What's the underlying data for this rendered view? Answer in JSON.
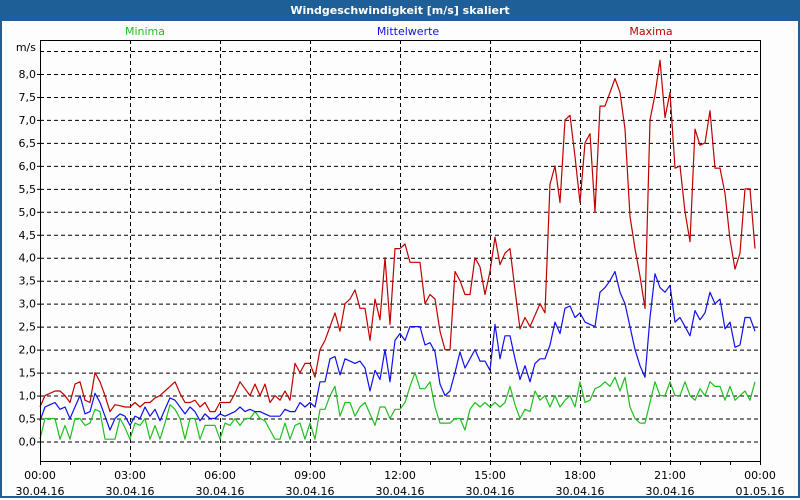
{
  "window": {
    "title": "Windgeschwindigkeit [m/s] skaliert"
  },
  "colors": {
    "titlebar": "#1e5f97",
    "min": "#1fbf1f",
    "mean": "#1010ee",
    "max": "#c00000"
  },
  "chart_data": {
    "type": "line",
    "title": "Windgeschwindigkeit [m/s] skaliert",
    "ylabel": "m/s",
    "xlabel": "",
    "ylim": [
      -0.4,
      8.7
    ],
    "yticks": [
      "0,0",
      "0,5",
      "1,0",
      "1,5",
      "2,0",
      "2,5",
      "3,0",
      "3,5",
      "4,0",
      "4,5",
      "5,0",
      "5,5",
      "6,0",
      "6,5",
      "7,0",
      "7,5",
      "8,0"
    ],
    "ytick_values": [
      0,
      0.5,
      1,
      1.5,
      2,
      2.5,
      3,
      3.5,
      4,
      4.5,
      5,
      5.5,
      6,
      6.5,
      7,
      7.5,
      8
    ],
    "xlim_hours": [
      0,
      24
    ],
    "xticks": [
      {
        "hour": 0,
        "time": "00:00",
        "date": "30.04.16"
      },
      {
        "hour": 3,
        "time": "03:00",
        "date": "30.04.16"
      },
      {
        "hour": 6,
        "time": "06:00",
        "date": "30.04.16"
      },
      {
        "hour": 9,
        "time": "09:00",
        "date": "30.04.16"
      },
      {
        "hour": 12,
        "time": "12:00",
        "date": "30.04.16"
      },
      {
        "hour": 15,
        "time": "15:00",
        "date": "30.04.16"
      },
      {
        "hour": 18,
        "time": "18:00",
        "date": "30.04.16"
      },
      {
        "hour": 21,
        "time": "21:00",
        "date": "30.04.16"
      },
      {
        "hour": 24,
        "time": "00:00",
        "date": "01.05.16"
      }
    ],
    "grid": true,
    "legend_placement": "top",
    "x_start_hour": 0,
    "interval_minutes": 10,
    "series": [
      {
        "name": "Minima",
        "color": "#1fbf1f",
        "values": [
          0.05,
          0.5,
          0.5,
          0.5,
          0.05,
          0.35,
          0.05,
          0.5,
          0.5,
          0.35,
          0.4,
          0.7,
          0.65,
          0.05,
          0.05,
          0.05,
          0.5,
          0.3,
          0.05,
          0.4,
          0.35,
          0.5,
          0.05,
          0.35,
          0.05,
          0.4,
          0.8,
          0.7,
          0.5,
          0.05,
          0.5,
          0.5,
          0.05,
          0.35,
          0.35,
          0.35,
          0.05,
          0.4,
          0.35,
          0.5,
          0.35,
          0.5,
          0.5,
          0.65,
          0.5,
          0.45,
          0.25,
          0.05,
          0.05,
          0.4,
          0.05,
          0.35,
          0.4,
          0.05,
          0.4,
          0.05,
          0.7,
          0.7,
          1.0,
          1.2,
          0.55,
          0.85,
          0.85,
          0.55,
          0.75,
          0.85,
          0.6,
          0.35,
          0.75,
          0.75,
          0.5,
          0.7,
          0.7,
          0.85,
          1.2,
          1.5,
          1.15,
          1.15,
          1.3,
          0.75,
          0.4,
          0.4,
          0.4,
          0.5,
          0.5,
          0.25,
          0.7,
          0.85,
          0.75,
          0.85,
          0.75,
          0.85,
          0.75,
          0.85,
          1.2,
          0.8,
          0.5,
          0.7,
          0.65,
          1.1,
          0.9,
          1.0,
          0.75,
          1.0,
          0.75,
          0.9,
          1.0,
          0.75,
          1.3,
          0.85,
          0.9,
          1.15,
          1.2,
          1.3,
          1.2,
          1.4,
          1.1,
          1.4,
          0.75,
          0.5,
          0.4,
          0.4,
          0.85,
          1.3,
          1.0,
          1.0,
          1.3,
          1.0,
          1.0,
          1.3,
          1.0,
          0.9,
          1.15,
          1.0,
          1.3,
          1.2,
          1.2,
          0.9,
          1.2,
          0.9,
          1.0,
          1.1,
          0.9,
          1.3
        ]
      },
      {
        "name": "Mittelwerte",
        "color": "#1010ee",
        "values": [
          0.45,
          0.75,
          0.8,
          0.85,
          0.7,
          0.75,
          0.5,
          0.75,
          1.0,
          0.6,
          0.65,
          1.05,
          0.85,
          0.55,
          0.25,
          0.5,
          0.6,
          0.55,
          0.35,
          0.55,
          0.5,
          0.75,
          0.55,
          0.7,
          0.45,
          0.7,
          0.95,
          0.9,
          0.75,
          0.6,
          0.75,
          0.65,
          0.45,
          0.6,
          0.5,
          0.5,
          0.6,
          0.55,
          0.6,
          0.65,
          0.75,
          0.65,
          0.7,
          0.65,
          0.65,
          0.6,
          0.55,
          0.55,
          0.55,
          0.7,
          0.65,
          0.65,
          0.85,
          0.75,
          0.85,
          0.75,
          1.3,
          1.3,
          1.8,
          1.85,
          1.45,
          1.8,
          1.75,
          1.7,
          1.75,
          1.6,
          1.1,
          1.55,
          1.35,
          2.0,
          1.3,
          2.2,
          2.35,
          2.2,
          2.5,
          2.5,
          2.5,
          2.1,
          2.15,
          1.95,
          1.25,
          1.0,
          1.1,
          1.5,
          1.95,
          1.6,
          1.8,
          2.0,
          1.75,
          1.75,
          1.55,
          2.55,
          1.8,
          2.3,
          2.3,
          1.8,
          1.35,
          1.65,
          1.3,
          1.7,
          1.8,
          1.8,
          2.1,
          2.6,
          2.35,
          2.9,
          2.95,
          2.7,
          2.8,
          2.6,
          2.55,
          2.5,
          3.25,
          3.35,
          3.5,
          3.7,
          3.25,
          3.0,
          2.5,
          2.0,
          1.65,
          1.4,
          2.7,
          3.65,
          3.35,
          3.25,
          3.4,
          2.6,
          2.7,
          2.5,
          2.3,
          2.85,
          2.65,
          2.8,
          3.25,
          3.0,
          3.1,
          2.45,
          2.6,
          2.05,
          2.1,
          2.7,
          2.7,
          2.4
        ]
      },
      {
        "name": "Maxima",
        "color": "#c00000",
        "values": [
          0.75,
          1.0,
          1.05,
          1.1,
          1.1,
          1.0,
          0.85,
          1.25,
          1.3,
          0.9,
          0.85,
          1.5,
          1.3,
          1.0,
          0.65,
          0.8,
          0.78,
          0.75,
          0.75,
          0.85,
          0.75,
          0.85,
          0.85,
          0.95,
          1.0,
          1.1,
          1.2,
          1.3,
          1.05,
          0.85,
          0.85,
          0.9,
          0.75,
          0.85,
          0.65,
          0.65,
          0.85,
          0.85,
          0.85,
          1.05,
          1.3,
          1.15,
          1.0,
          1.25,
          1.0,
          1.25,
          0.85,
          1.0,
          0.9,
          1.1,
          0.9,
          1.7,
          1.5,
          1.7,
          1.7,
          1.4,
          2.0,
          2.2,
          2.5,
          2.8,
          2.4,
          3.0,
          3.1,
          3.3,
          2.9,
          2.9,
          2.2,
          3.1,
          2.65,
          4.0,
          2.55,
          4.2,
          4.2,
          4.3,
          3.9,
          3.9,
          3.9,
          3.0,
          3.2,
          3.1,
          2.4,
          2.0,
          2.0,
          3.7,
          3.5,
          3.2,
          3.2,
          4.0,
          3.8,
          3.2,
          3.7,
          4.45,
          3.85,
          4.1,
          4.2,
          3.3,
          2.45,
          2.7,
          2.5,
          2.75,
          3.0,
          2.8,
          5.6,
          6.0,
          5.2,
          7.0,
          7.1,
          6.2,
          5.2,
          6.5,
          6.7,
          5.0,
          7.3,
          7.3,
          7.6,
          7.9,
          7.6,
          6.8,
          4.9,
          4.2,
          3.6,
          2.9,
          7.0,
          7.55,
          8.3,
          7.05,
          7.6,
          5.95,
          6.0,
          5.0,
          4.35,
          6.8,
          6.45,
          6.5,
          7.2,
          5.95,
          5.95,
          5.4,
          4.4,
          3.75,
          4.1,
          5.5,
          5.5,
          4.2
        ]
      }
    ]
  }
}
